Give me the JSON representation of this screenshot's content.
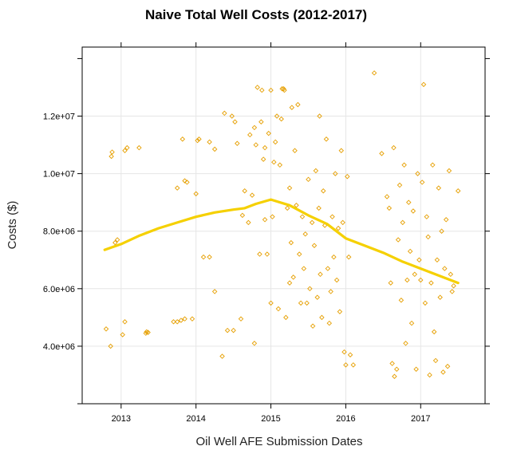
{
  "chart_data": {
    "type": "scatter",
    "title": "Naive Total Well Costs (2012-2017)",
    "xlabel": "Oil Well AFE Submission Dates",
    "ylabel": "Costs ($)",
    "xlim": [
      2012.48,
      2017.86
    ],
    "ylim": [
      2000000,
      14400000
    ],
    "grid": true,
    "x_ticks": [
      {
        "value": 2013,
        "label": "2013"
      },
      {
        "value": 2014,
        "label": "2014"
      },
      {
        "value": 2015,
        "label": "2015"
      },
      {
        "value": 2016,
        "label": "2016"
      },
      {
        "value": 2017,
        "label": "2017"
      }
    ],
    "y_ticks": [
      {
        "value": 4000000,
        "label": "4.0e+06"
      },
      {
        "value": 6000000,
        "label": "6.0e+06"
      },
      {
        "value": 8000000,
        "label": "8.0e+06"
      },
      {
        "value": 10000000,
        "label": "1.0e+07"
      },
      {
        "value": 12000000,
        "label": "1.2e+07"
      }
    ],
    "point_color": "#e69f00",
    "smooth_color": "#f5d000",
    "series": [
      {
        "kind": "points",
        "points": [
          [
            2012.8,
            4600000
          ],
          [
            2012.86,
            4000000
          ],
          [
            2012.87,
            10600000
          ],
          [
            2012.88,
            10750000
          ],
          [
            2012.92,
            7600000
          ],
          [
            2012.95,
            7700000
          ],
          [
            2013.02,
            4400000
          ],
          [
            2013.05,
            4850000
          ],
          [
            2013.05,
            10800000
          ],
          [
            2013.08,
            10900000
          ],
          [
            2013.24,
            10900000
          ],
          [
            2013.33,
            4450000
          ],
          [
            2013.34,
            4500000
          ],
          [
            2013.36,
            4480000
          ],
          [
            2013.7,
            4850000
          ],
          [
            2013.75,
            4850000
          ],
          [
            2013.8,
            4900000
          ],
          [
            2013.85,
            4950000
          ],
          [
            2013.75,
            9500000
          ],
          [
            2013.85,
            9750000
          ],
          [
            2013.88,
            9700000
          ],
          [
            2013.82,
            11200000
          ],
          [
            2013.95,
            4950000
          ],
          [
            2014.0,
            9300000
          ],
          [
            2014.02,
            11150000
          ],
          [
            2014.04,
            11200000
          ],
          [
            2014.1,
            7100000
          ],
          [
            2014.18,
            7100000
          ],
          [
            2014.18,
            11100000
          ],
          [
            2014.25,
            5900000
          ],
          [
            2014.25,
            10850000
          ],
          [
            2014.35,
            3650000
          ],
          [
            2014.38,
            12100000
          ],
          [
            2014.42,
            4550000
          ],
          [
            2014.48,
            12000000
          ],
          [
            2014.5,
            4550000
          ],
          [
            2014.52,
            11800000
          ],
          [
            2014.55,
            11050000
          ],
          [
            2014.6,
            4950000
          ],
          [
            2014.62,
            8550000
          ],
          [
            2014.65,
            9400000
          ],
          [
            2014.7,
            8300000
          ],
          [
            2014.72,
            11350000
          ],
          [
            2014.75,
            9250000
          ],
          [
            2014.78,
            4100000
          ],
          [
            2014.78,
            11600000
          ],
          [
            2014.8,
            11000000
          ],
          [
            2014.82,
            13000000
          ],
          [
            2014.85,
            7200000
          ],
          [
            2014.87,
            11800000
          ],
          [
            2014.88,
            12900000
          ],
          [
            2014.9,
            10500000
          ],
          [
            2014.92,
            8400000
          ],
          [
            2014.92,
            10900000
          ],
          [
            2014.95,
            7200000
          ],
          [
            2014.97,
            11400000
          ],
          [
            2015.0,
            5500000
          ],
          [
            2015.0,
            12900000
          ],
          [
            2015.02,
            8500000
          ],
          [
            2015.04,
            10400000
          ],
          [
            2015.06,
            11100000
          ],
          [
            2015.08,
            12000000
          ],
          [
            2015.1,
            5300000
          ],
          [
            2015.12,
            10300000
          ],
          [
            2015.14,
            11900000
          ],
          [
            2015.15,
            12950000
          ],
          [
            2015.17,
            12950000
          ],
          [
            2015.18,
            12900000
          ],
          [
            2015.2,
            5000000
          ],
          [
            2015.22,
            8800000
          ],
          [
            2015.25,
            6200000
          ],
          [
            2015.25,
            9500000
          ],
          [
            2015.27,
            7600000
          ],
          [
            2015.28,
            12300000
          ],
          [
            2015.3,
            6400000
          ],
          [
            2015.32,
            10800000
          ],
          [
            2015.34,
            8900000
          ],
          [
            2015.36,
            12400000
          ],
          [
            2015.38,
            7200000
          ],
          [
            2015.4,
            5500000
          ],
          [
            2015.42,
            8500000
          ],
          [
            2015.44,
            6700000
          ],
          [
            2015.46,
            7900000
          ],
          [
            2015.48,
            5500000
          ],
          [
            2015.5,
            9800000
          ],
          [
            2015.52,
            6000000
          ],
          [
            2015.55,
            8300000
          ],
          [
            2015.56,
            4700000
          ],
          [
            2015.58,
            7500000
          ],
          [
            2015.6,
            10100000
          ],
          [
            2015.62,
            5700000
          ],
          [
            2015.64,
            8800000
          ],
          [
            2015.65,
            12000000
          ],
          [
            2015.66,
            6500000
          ],
          [
            2015.68,
            5000000
          ],
          [
            2015.7,
            9400000
          ],
          [
            2015.72,
            8200000
          ],
          [
            2015.74,
            11200000
          ],
          [
            2015.76,
            6700000
          ],
          [
            2015.78,
            4800000
          ],
          [
            2015.8,
            5900000
          ],
          [
            2015.82,
            8500000
          ],
          [
            2015.84,
            7100000
          ],
          [
            2015.86,
            10000000
          ],
          [
            2015.88,
            6300000
          ],
          [
            2015.9,
            8100000
          ],
          [
            2015.92,
            5200000
          ],
          [
            2015.94,
            10800000
          ],
          [
            2015.96,
            8300000
          ],
          [
            2015.98,
            3800000
          ],
          [
            2016.0,
            3350000
          ],
          [
            2016.02,
            9900000
          ],
          [
            2016.04,
            7100000
          ],
          [
            2016.06,
            3700000
          ],
          [
            2016.1,
            3350000
          ],
          [
            2016.38,
            13500000
          ],
          [
            2016.48,
            10700000
          ],
          [
            2016.55,
            9200000
          ],
          [
            2016.58,
            8800000
          ],
          [
            2016.6,
            6200000
          ],
          [
            2016.62,
            3400000
          ],
          [
            2016.64,
            10900000
          ],
          [
            2016.65,
            2950000
          ],
          [
            2016.68,
            3200000
          ],
          [
            2016.7,
            7700000
          ],
          [
            2016.72,
            9600000
          ],
          [
            2016.74,
            5600000
          ],
          [
            2016.76,
            8300000
          ],
          [
            2016.78,
            10300000
          ],
          [
            2016.8,
            4100000
          ],
          [
            2016.82,
            6300000
          ],
          [
            2016.84,
            9000000
          ],
          [
            2016.86,
            7300000
          ],
          [
            2016.88,
            4800000
          ],
          [
            2016.9,
            8700000
          ],
          [
            2016.92,
            6500000
          ],
          [
            2016.94,
            3200000
          ],
          [
            2016.96,
            10000000
          ],
          [
            2016.98,
            7000000
          ],
          [
            2017.0,
            6300000
          ],
          [
            2017.02,
            9700000
          ],
          [
            2017.04,
            13100000
          ],
          [
            2017.06,
            5500000
          ],
          [
            2017.08,
            8500000
          ],
          [
            2017.1,
            7800000
          ],
          [
            2017.12,
            3000000
          ],
          [
            2017.14,
            6200000
          ],
          [
            2017.16,
            10300000
          ],
          [
            2017.18,
            4500000
          ],
          [
            2017.2,
            3500000
          ],
          [
            2017.22,
            7000000
          ],
          [
            2017.24,
            9500000
          ],
          [
            2017.26,
            5700000
          ],
          [
            2017.28,
            8000000
          ],
          [
            2017.3,
            3100000
          ],
          [
            2017.32,
            6700000
          ],
          [
            2017.34,
            8400000
          ],
          [
            2017.36,
            3300000
          ],
          [
            2017.38,
            10100000
          ],
          [
            2017.4,
            6500000
          ],
          [
            2017.42,
            5900000
          ],
          [
            2017.44,
            6100000
          ],
          [
            2017.5,
            9400000
          ]
        ]
      },
      {
        "kind": "smooth",
        "points": [
          [
            2012.78,
            7350000
          ],
          [
            2013.0,
            7550000
          ],
          [
            2013.25,
            7850000
          ],
          [
            2013.5,
            8100000
          ],
          [
            2013.75,
            8300000
          ],
          [
            2014.0,
            8500000
          ],
          [
            2014.25,
            8650000
          ],
          [
            2014.5,
            8750000
          ],
          [
            2014.65,
            8800000
          ],
          [
            2014.8,
            8950000
          ],
          [
            2015.0,
            9100000
          ],
          [
            2015.25,
            8900000
          ],
          [
            2015.5,
            8550000
          ],
          [
            2015.75,
            8250000
          ],
          [
            2016.0,
            7750000
          ],
          [
            2016.25,
            7500000
          ],
          [
            2016.5,
            7250000
          ],
          [
            2016.75,
            6950000
          ],
          [
            2017.0,
            6700000
          ],
          [
            2017.25,
            6450000
          ],
          [
            2017.5,
            6200000
          ]
        ]
      }
    ]
  }
}
